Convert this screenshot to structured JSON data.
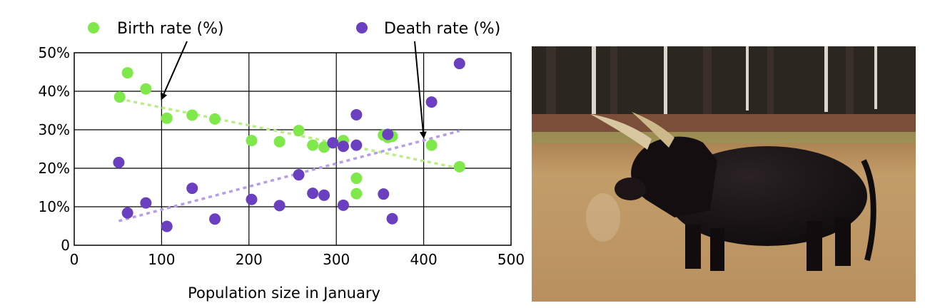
{
  "chart_data": {
    "type": "scatter",
    "xlabel": "Population size in January",
    "ylabel": "",
    "xlim": [
      0,
      500
    ],
    "ylim": [
      0,
      50
    ],
    "x_ticks": [
      "0",
      "100",
      "200",
      "300",
      "400",
      "500"
    ],
    "y_ticks": [
      "0",
      "10%",
      "20%",
      "30%",
      "40%",
      "50%"
    ],
    "grid": true,
    "legend_position": "top",
    "series": [
      {
        "name": "Birth rate (%)",
        "color": "#7fe84a",
        "trend_color": "#b8ee84",
        "x": [
          52,
          61,
          82,
          106,
          135,
          161,
          203,
          235,
          257,
          273,
          286,
          308,
          323,
          323,
          354,
          359,
          364,
          409,
          441
        ],
        "y": [
          38.5,
          44.8,
          40.6,
          33.0,
          33.8,
          32.8,
          27.2,
          26.9,
          29.8,
          26.0,
          25.5,
          27.2,
          17.4,
          13.4,
          28.6,
          28.0,
          28.3,
          26.0,
          20.4
        ],
        "trend": {
          "x": [
            52,
            441
          ],
          "y": [
            38,
            20
          ]
        }
      },
      {
        "name": "Death rate (%)",
        "color": "#6a3fc0",
        "trend_color": "#b79de8",
        "x": [
          51,
          61,
          82,
          106,
          135,
          161,
          203,
          235,
          257,
          273,
          286,
          296,
          308,
          308,
          323,
          323,
          354,
          359,
          364,
          409,
          441
        ],
        "y": [
          21.5,
          8.4,
          11.0,
          4.9,
          14.8,
          6.8,
          11.9,
          10.3,
          18.3,
          13.5,
          13.0,
          26.6,
          10.4,
          25.7,
          26.0,
          33.9,
          13.3,
          28.8,
          6.9,
          37.2,
          47.2
        ],
        "trend": {
          "x": [
            51,
            441
          ],
          "y": [
            6.3,
            29.7
          ]
        }
      }
    ],
    "annotations": [
      {
        "label": "Birth rate (%)",
        "arrow_to": {
          "x": 100,
          "y": 38
        }
      },
      {
        "label": "Death rate (%)",
        "arrow_to": {
          "x": 400,
          "y": 28
        }
      }
    ]
  },
  "photo": {
    "subject": "bull-photo",
    "colors": {
      "sky": "#4a4e52",
      "trees": "#2a241d",
      "grass": "#c4a06a",
      "bull": "#151012",
      "horn": "#d8c7a0"
    }
  }
}
